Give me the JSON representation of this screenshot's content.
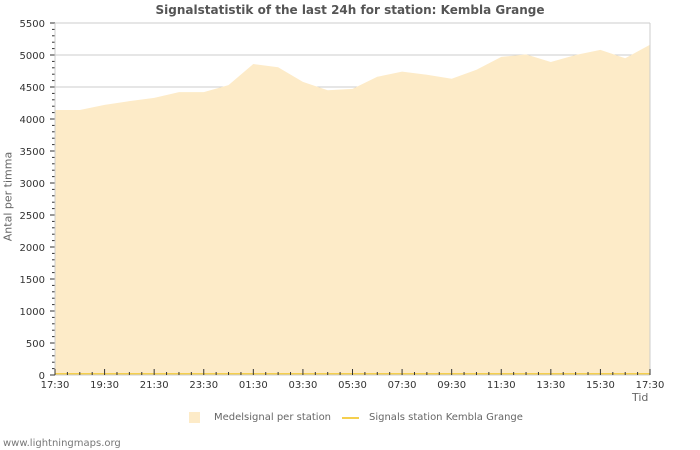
{
  "chart_data": {
    "type": "area",
    "title": "Signalstatistik of the last 24h for station: Kembla Grange",
    "xlabel": "Tid",
    "ylabel": "Antal per timma",
    "ylim": [
      0,
      5500
    ],
    "yticks": [
      0,
      500,
      1000,
      1500,
      2000,
      2500,
      3000,
      3500,
      4000,
      4500,
      5000,
      5500
    ],
    "xtick_labels": [
      "17:30",
      "19:30",
      "21:30",
      "23:30",
      "01:30",
      "03:30",
      "05:30",
      "07:30",
      "09:30",
      "11:30",
      "13:30",
      "15:30",
      "17:30"
    ],
    "x": [
      "17:30",
      "18:30",
      "19:30",
      "20:30",
      "21:30",
      "22:30",
      "23:30",
      "00:30",
      "01:30",
      "02:30",
      "03:30",
      "04:30",
      "05:30",
      "06:30",
      "07:30",
      "08:30",
      "09:30",
      "10:30",
      "11:30",
      "12:30",
      "13:30",
      "14:30",
      "15:30",
      "16:30",
      "17:30"
    ],
    "series": [
      {
        "name": "Medelsignal per station",
        "style": "area",
        "color": "#fdebc8",
        "values": [
          4140,
          4140,
          4220,
          4280,
          4330,
          4420,
          4420,
          4530,
          4860,
          4810,
          4580,
          4450,
          4470,
          4660,
          4740,
          4690,
          4630,
          4770,
          4970,
          5010,
          4890,
          5000,
          5080,
          4950,
          5160
        ]
      },
      {
        "name": "Signals station Kembla Grange",
        "style": "line",
        "color": "#f5cf4e",
        "values": [
          0,
          0,
          0,
          0,
          0,
          0,
          0,
          0,
          0,
          0,
          0,
          0,
          0,
          0,
          0,
          0,
          0,
          0,
          0,
          0,
          0,
          0,
          0,
          0,
          0
        ]
      }
    ],
    "grid": true,
    "legend_position": "bottom"
  },
  "legend": {
    "items": [
      {
        "label": "Medelsignal per station"
      },
      {
        "label": "Signals station Kembla Grange"
      }
    ]
  },
  "footer": {
    "text": "www.lightningmaps.org"
  }
}
